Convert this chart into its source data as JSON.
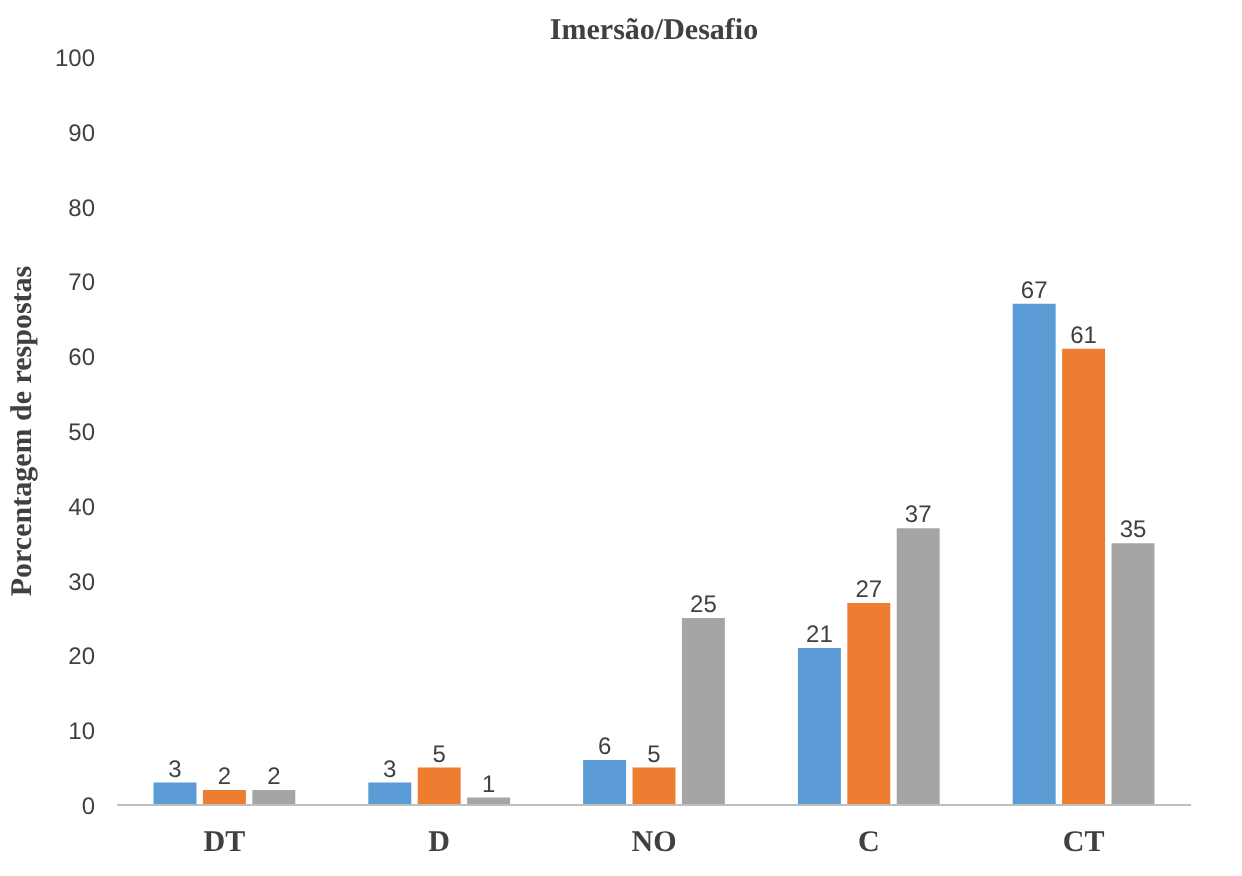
{
  "chart_data": {
    "type": "bar",
    "title": "Imersão/Desafio",
    "ylabel": "Porcentagem de respostas",
    "categories": [
      "DT",
      "D",
      "NO",
      "C",
      "CT"
    ],
    "series": [
      {
        "color": "#5b9bd5",
        "values": [
          3,
          3,
          6,
          21,
          67
        ]
      },
      {
        "color": "#ed7d31",
        "values": [
          2,
          5,
          5,
          27,
          61
        ]
      },
      {
        "color": "#a5a5a5",
        "values": [
          2,
          1,
          25,
          37,
          35
        ]
      }
    ],
    "ylim": [
      0,
      100
    ],
    "yticks": [
      0,
      10,
      20,
      30,
      40,
      50,
      60,
      70,
      80,
      90,
      100
    ],
    "grid": false,
    "data_labels": true
  }
}
